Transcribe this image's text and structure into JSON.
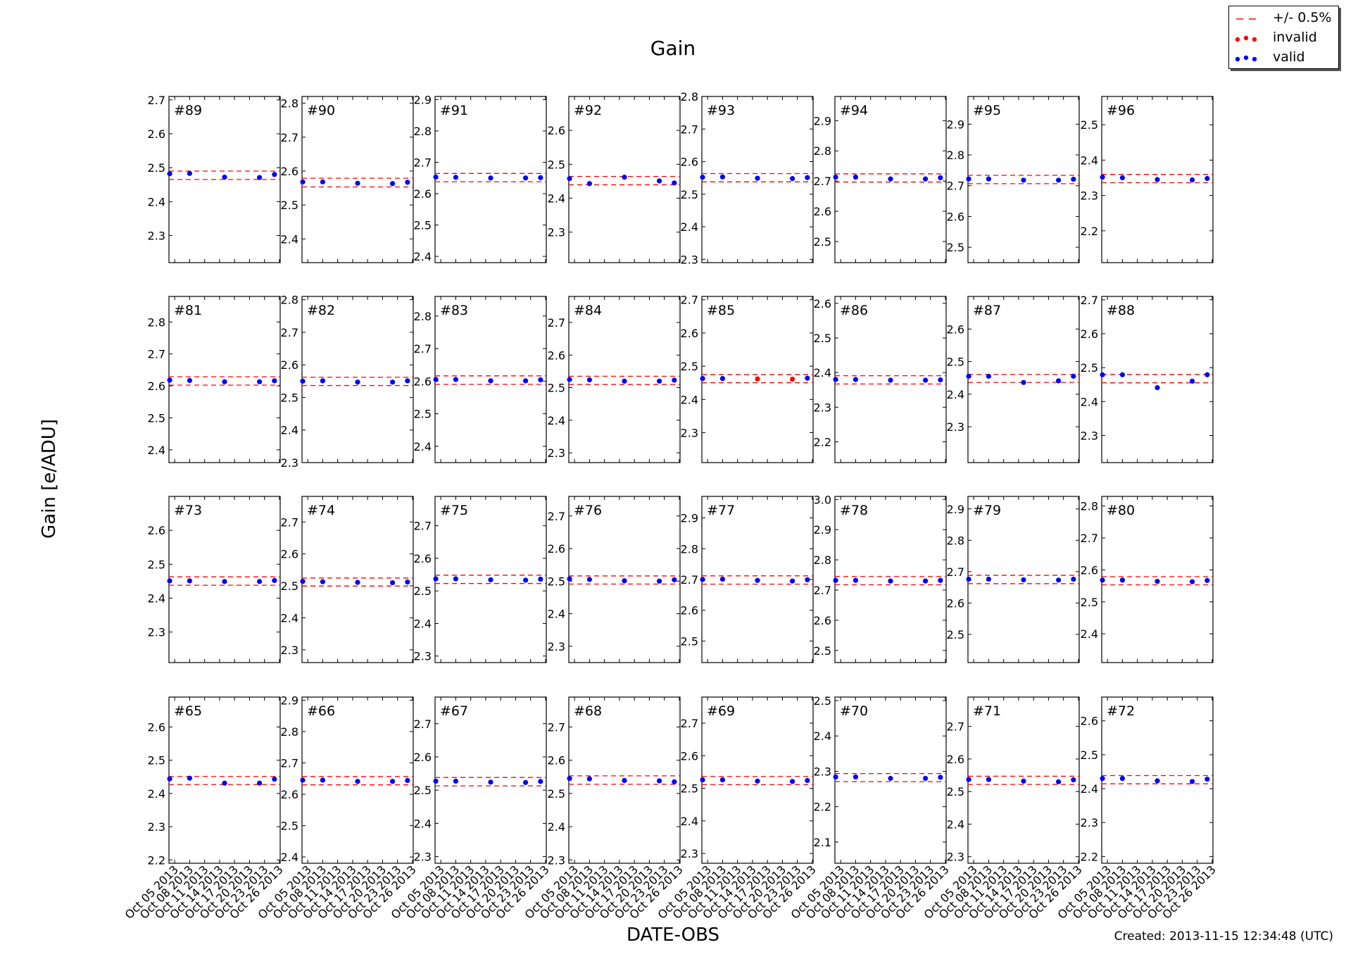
{
  "figure": {
    "title": "Gain",
    "xlabel": "DATE-OBS",
    "ylabel": "Gain [e/ADU]",
    "created": "Created: 2013-11-15 12:34:48 (UTC)"
  },
  "legend": {
    "placement": "top-right",
    "items": [
      {
        "label": "+/- 0.5%",
        "symbol": "dashed-line",
        "color": "#ff0000"
      },
      {
        "label": "invalid",
        "symbol": "dots",
        "color": "#ff0000"
      },
      {
        "label": "valid",
        "symbol": "dots",
        "color": "#0000ff"
      }
    ]
  },
  "colors": {
    "valid": "#0000ff",
    "invalid": "#ff0000",
    "band": "#ff0000"
  },
  "chart_data": {
    "type": "scatter",
    "layout": "4x8 small multiples",
    "x_ticks": [
      "Oct 05 2013",
      "Oct 08 2013",
      "Oct 11 2013",
      "Oct 14 2013",
      "Oct 17 2013",
      "Oct 20 2013",
      "Oct 23 2013",
      "Oct 26 2013"
    ],
    "x_dates": [
      "Oct 04 2013",
      "Oct 08 2013",
      "Oct 15 2013",
      "Oct 22 2013",
      "Oct 25 2013"
    ],
    "band": "+/- 0.5%",
    "panels": [
      {
        "label": "#89",
        "ylim": [
          2.22,
          2.71
        ],
        "yticks": [
          2.3,
          2.4,
          2.5,
          2.6,
          2.7
        ],
        "values": [
          2.482,
          2.483,
          2.472,
          2.471,
          2.48
        ],
        "valid": [
          true,
          true,
          true,
          true,
          true
        ]
      },
      {
        "label": "#90",
        "ylim": [
          2.33,
          2.82
        ],
        "yticks": [
          2.4,
          2.5,
          2.6,
          2.7,
          2.8
        ],
        "values": [
          2.568,
          2.568,
          2.564,
          2.563,
          2.567
        ],
        "valid": [
          true,
          true,
          true,
          true,
          true
        ]
      },
      {
        "label": "#91",
        "ylim": [
          2.38,
          2.91
        ],
        "yticks": [
          2.4,
          2.5,
          2.6,
          2.7,
          2.8,
          2.9
        ],
        "values": [
          2.653,
          2.652,
          2.65,
          2.65,
          2.651
        ],
        "valid": [
          true,
          true,
          true,
          true,
          true
        ]
      },
      {
        "label": "#92",
        "ylim": [
          2.21,
          2.7
        ],
        "yticks": [
          2.3,
          2.4,
          2.5,
          2.6
        ],
        "values": [
          2.458,
          2.443,
          2.462,
          2.451,
          2.445
        ],
        "valid": [
          true,
          true,
          true,
          true,
          true
        ]
      },
      {
        "label": "#93",
        "ylim": [
          2.29,
          2.8
        ],
        "yticks": [
          2.3,
          2.4,
          2.5,
          2.6,
          2.7,
          2.8
        ],
        "values": [
          2.552,
          2.553,
          2.549,
          2.548,
          2.551
        ],
        "valid": [
          true,
          true,
          true,
          true,
          true
        ]
      },
      {
        "label": "#94",
        "ylim": [
          2.43,
          2.98
        ],
        "yticks": [
          2.5,
          2.6,
          2.7,
          2.8,
          2.9
        ],
        "values": [
          2.713,
          2.713,
          2.707,
          2.707,
          2.711
        ],
        "valid": [
          true,
          true,
          true,
          true,
          true
        ]
      },
      {
        "label": "#95",
        "ylim": [
          2.45,
          2.99
        ],
        "yticks": [
          2.5,
          2.6,
          2.7,
          2.8,
          2.9
        ],
        "values": [
          2.722,
          2.722,
          2.718,
          2.718,
          2.721
        ],
        "valid": [
          true,
          true,
          true,
          true,
          true
        ]
      },
      {
        "label": "#96",
        "ylim": [
          2.11,
          2.58
        ],
        "yticks": [
          2.2,
          2.3,
          2.4,
          2.5
        ],
        "values": [
          2.352,
          2.35,
          2.345,
          2.344,
          2.348
        ],
        "valid": [
          true,
          true,
          true,
          true,
          true
        ]
      },
      {
        "label": "#81",
        "ylim": [
          2.36,
          2.88
        ],
        "yticks": [
          2.4,
          2.5,
          2.6,
          2.7,
          2.8
        ],
        "values": [
          2.618,
          2.617,
          2.613,
          2.613,
          2.616
        ],
        "valid": [
          true,
          true,
          true,
          true,
          true
        ]
      },
      {
        "label": "#82",
        "ylim": [
          2.3,
          2.81
        ],
        "yticks": [
          2.3,
          2.4,
          2.5,
          2.6,
          2.7,
          2.8
        ],
        "values": [
          2.55,
          2.551,
          2.547,
          2.547,
          2.551
        ],
        "valid": [
          true,
          true,
          true,
          true,
          true
        ]
      },
      {
        "label": "#83",
        "ylim": [
          2.35,
          2.86
        ],
        "yticks": [
          2.4,
          2.5,
          2.6,
          2.7,
          2.8
        ],
        "values": [
          2.605,
          2.605,
          2.601,
          2.601,
          2.604
        ],
        "valid": [
          true,
          true,
          true,
          true,
          true
        ]
      },
      {
        "label": "#84",
        "ylim": [
          2.27,
          2.78
        ],
        "yticks": [
          2.3,
          2.4,
          2.5,
          2.6,
          2.7
        ],
        "values": [
          2.525,
          2.524,
          2.52,
          2.52,
          2.523
        ],
        "valid": [
          true,
          true,
          true,
          true,
          true
        ]
      },
      {
        "label": "#85",
        "ylim": [
          2.21,
          2.71
        ],
        "yticks": [
          2.3,
          2.4,
          2.5,
          2.6,
          2.7
        ],
        "values": [
          2.463,
          2.463,
          2.462,
          2.461,
          2.464
        ],
        "valid": [
          true,
          true,
          false,
          false,
          true
        ]
      },
      {
        "label": "#86",
        "ylim": [
          2.14,
          2.62
        ],
        "yticks": [
          2.2,
          2.3,
          2.4,
          2.5,
          2.6
        ],
        "values": [
          2.38,
          2.38,
          2.378,
          2.378,
          2.379
        ],
        "valid": [
          true,
          true,
          true,
          true,
          true
        ]
      },
      {
        "label": "#87",
        "ylim": [
          2.19,
          2.7
        ],
        "yticks": [
          2.3,
          2.4,
          2.5,
          2.6
        ],
        "values": [
          2.455,
          2.455,
          2.436,
          2.441,
          2.455
        ],
        "valid": [
          true,
          true,
          true,
          true,
          true
        ]
      },
      {
        "label": "#88",
        "ylim": [
          2.22,
          2.71
        ],
        "yticks": [
          2.3,
          2.4,
          2.5,
          2.6,
          2.7
        ],
        "values": [
          2.479,
          2.479,
          2.441,
          2.46,
          2.479
        ],
        "valid": [
          true,
          true,
          true,
          true,
          true
        ]
      },
      {
        "label": "#73",
        "ylim": [
          2.21,
          2.7
        ],
        "yticks": [
          2.3,
          2.4,
          2.5,
          2.6
        ],
        "values": [
          2.451,
          2.451,
          2.449,
          2.449,
          2.452
        ],
        "valid": [
          true,
          true,
          true,
          true,
          true
        ]
      },
      {
        "label": "#74",
        "ylim": [
          2.26,
          2.78
        ],
        "yticks": [
          2.3,
          2.4,
          2.5,
          2.6,
          2.7
        ],
        "values": [
          2.514,
          2.513,
          2.511,
          2.51,
          2.512
        ],
        "valid": [
          true,
          true,
          true,
          true,
          true
        ]
      },
      {
        "label": "#75",
        "ylim": [
          2.28,
          2.79
        ],
        "yticks": [
          2.3,
          2.4,
          2.5,
          2.6,
          2.7
        ],
        "values": [
          2.537,
          2.537,
          2.534,
          2.533,
          2.536
        ],
        "valid": [
          true,
          true,
          true,
          true,
          true
        ]
      },
      {
        "label": "#76",
        "ylim": [
          2.25,
          2.76
        ],
        "yticks": [
          2.3,
          2.4,
          2.5,
          2.6,
          2.7
        ],
        "values": [
          2.507,
          2.505,
          2.501,
          2.5,
          2.504
        ],
        "valid": [
          true,
          true,
          true,
          true,
          true
        ]
      },
      {
        "label": "#77",
        "ylim": [
          2.43,
          2.97
        ],
        "yticks": [
          2.5,
          2.6,
          2.7,
          2.8,
          2.9
        ],
        "values": [
          2.7,
          2.701,
          2.697,
          2.695,
          2.699
        ],
        "valid": [
          true,
          true,
          true,
          true,
          true
        ]
      },
      {
        "label": "#78",
        "ylim": [
          2.46,
          3.01
        ],
        "yticks": [
          2.5,
          2.6,
          2.7,
          2.8,
          2.9,
          3.0
        ],
        "values": [
          2.732,
          2.732,
          2.73,
          2.73,
          2.732
        ],
        "valid": [
          true,
          true,
          true,
          true,
          true
        ]
      },
      {
        "label": "#79",
        "ylim": [
          2.41,
          2.94
        ],
        "yticks": [
          2.5,
          2.6,
          2.7,
          2.8,
          2.9
        ],
        "values": [
          2.676,
          2.676,
          2.674,
          2.673,
          2.676
        ],
        "valid": [
          true,
          true,
          true,
          true,
          true
        ]
      },
      {
        "label": "#80",
        "ylim": [
          2.31,
          2.83
        ],
        "yticks": [
          2.4,
          2.5,
          2.6,
          2.7,
          2.8
        ],
        "values": [
          2.568,
          2.568,
          2.564,
          2.563,
          2.567
        ],
        "valid": [
          true,
          true,
          true,
          true,
          true
        ]
      },
      {
        "label": "#65",
        "ylim": [
          2.19,
          2.69
        ],
        "yticks": [
          2.2,
          2.3,
          2.4,
          2.5,
          2.6
        ],
        "values": [
          2.444,
          2.446,
          2.431,
          2.431,
          2.443
        ],
        "valid": [
          true,
          true,
          true,
          true,
          true
        ]
      },
      {
        "label": "#66",
        "ylim": [
          2.38,
          2.91
        ],
        "yticks": [
          2.4,
          2.5,
          2.6,
          2.7,
          2.8,
          2.9
        ],
        "values": [
          2.645,
          2.645,
          2.641,
          2.641,
          2.644
        ],
        "valid": [
          true,
          true,
          true,
          true,
          true
        ]
      },
      {
        "label": "#67",
        "ylim": [
          2.28,
          2.78
        ],
        "yticks": [
          2.3,
          2.4,
          2.5,
          2.6,
          2.7
        ],
        "values": [
          2.527,
          2.527,
          2.524,
          2.523,
          2.526
        ],
        "valid": [
          true,
          true,
          true,
          true,
          true
        ]
      },
      {
        "label": "#68",
        "ylim": [
          2.29,
          2.79
        ],
        "yticks": [
          2.3,
          2.4,
          2.5,
          2.6,
          2.7
        ],
        "values": [
          2.545,
          2.544,
          2.539,
          2.538,
          2.535
        ],
        "valid": [
          true,
          true,
          true,
          true,
          true
        ]
      },
      {
        "label": "#69",
        "ylim": [
          2.27,
          2.78
        ],
        "yticks": [
          2.3,
          2.4,
          2.5,
          2.6,
          2.7
        ],
        "values": [
          2.526,
          2.526,
          2.522,
          2.521,
          2.524
        ],
        "valid": [
          true,
          true,
          true,
          true,
          true
        ]
      },
      {
        "label": "#70",
        "ylim": [
          2.04,
          2.51
        ],
        "yticks": [
          2.1,
          2.2,
          2.3,
          2.4,
          2.5
        ],
        "values": [
          2.284,
          2.284,
          2.28,
          2.28,
          2.283
        ],
        "valid": [
          true,
          true,
          true,
          true,
          true
        ]
      },
      {
        "label": "#71",
        "ylim": [
          2.28,
          2.79
        ],
        "yticks": [
          2.3,
          2.4,
          2.5,
          2.6,
          2.7
        ],
        "values": [
          2.537,
          2.537,
          2.532,
          2.53,
          2.536
        ],
        "valid": [
          true,
          true,
          true,
          true,
          true
        ]
      },
      {
        "label": "#72",
        "ylim": [
          2.18,
          2.67
        ],
        "yticks": [
          2.2,
          2.3,
          2.4,
          2.5,
          2.6
        ],
        "values": [
          2.43,
          2.43,
          2.423,
          2.421,
          2.428
        ],
        "valid": [
          true,
          true,
          true,
          true,
          true
        ]
      }
    ]
  }
}
